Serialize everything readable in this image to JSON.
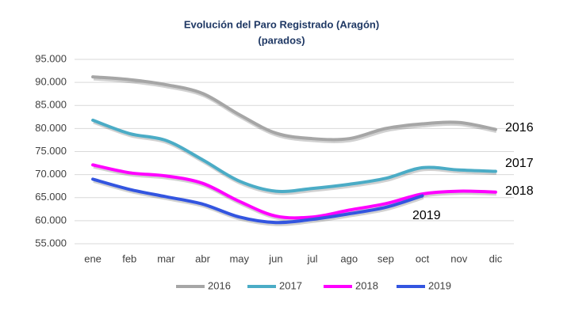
{
  "chart_data": {
    "type": "line",
    "title": "Evolución del Paro Registrado (Aragón)",
    "subtitle": "(parados)",
    "categories": [
      "ene",
      "feb",
      "mar",
      "abr",
      "may",
      "jun",
      "jul",
      "ago",
      "sep",
      "oct",
      "nov",
      "dic"
    ],
    "series": [
      {
        "name": "2016",
        "color": "#a6a6a6",
        "values": [
          91200,
          90600,
          89500,
          87600,
          83000,
          79000,
          77800,
          77800,
          80000,
          81000,
          81300,
          79800
        ]
      },
      {
        "name": "2017",
        "color": "#4bacc6",
        "values": [
          81800,
          78900,
          77400,
          73200,
          68600,
          66400,
          67000,
          67900,
          69200,
          71500,
          71000,
          70700
        ]
      },
      {
        "name": "2018",
        "color": "#ff00ff",
        "values": [
          72100,
          70400,
          69700,
          68100,
          64200,
          61000,
          60800,
          62300,
          63700,
          65800,
          66400,
          66200
        ]
      },
      {
        "name": "2019",
        "color": "#3355e0",
        "values": [
          69000,
          66800,
          65200,
          63600,
          60800,
          59600,
          60300,
          61500,
          62900,
          65400,
          null,
          null
        ]
      }
    ],
    "ylim": [
      55000,
      95000
    ],
    "yticks": [
      {
        "value": 55000,
        "label": "55.000"
      },
      {
        "value": 60000,
        "label": "60.000"
      },
      {
        "value": 65000,
        "label": "65.000"
      },
      {
        "value": 70000,
        "label": "70.000"
      },
      {
        "value": 75000,
        "label": "75.000"
      },
      {
        "value": 80000,
        "label": "80.000"
      },
      {
        "value": 85000,
        "label": "85.000"
      },
      {
        "value": 90000,
        "label": "90.000"
      },
      {
        "value": 95000,
        "label": "95.000"
      }
    ],
    "grid": true,
    "legend": "bottom"
  }
}
